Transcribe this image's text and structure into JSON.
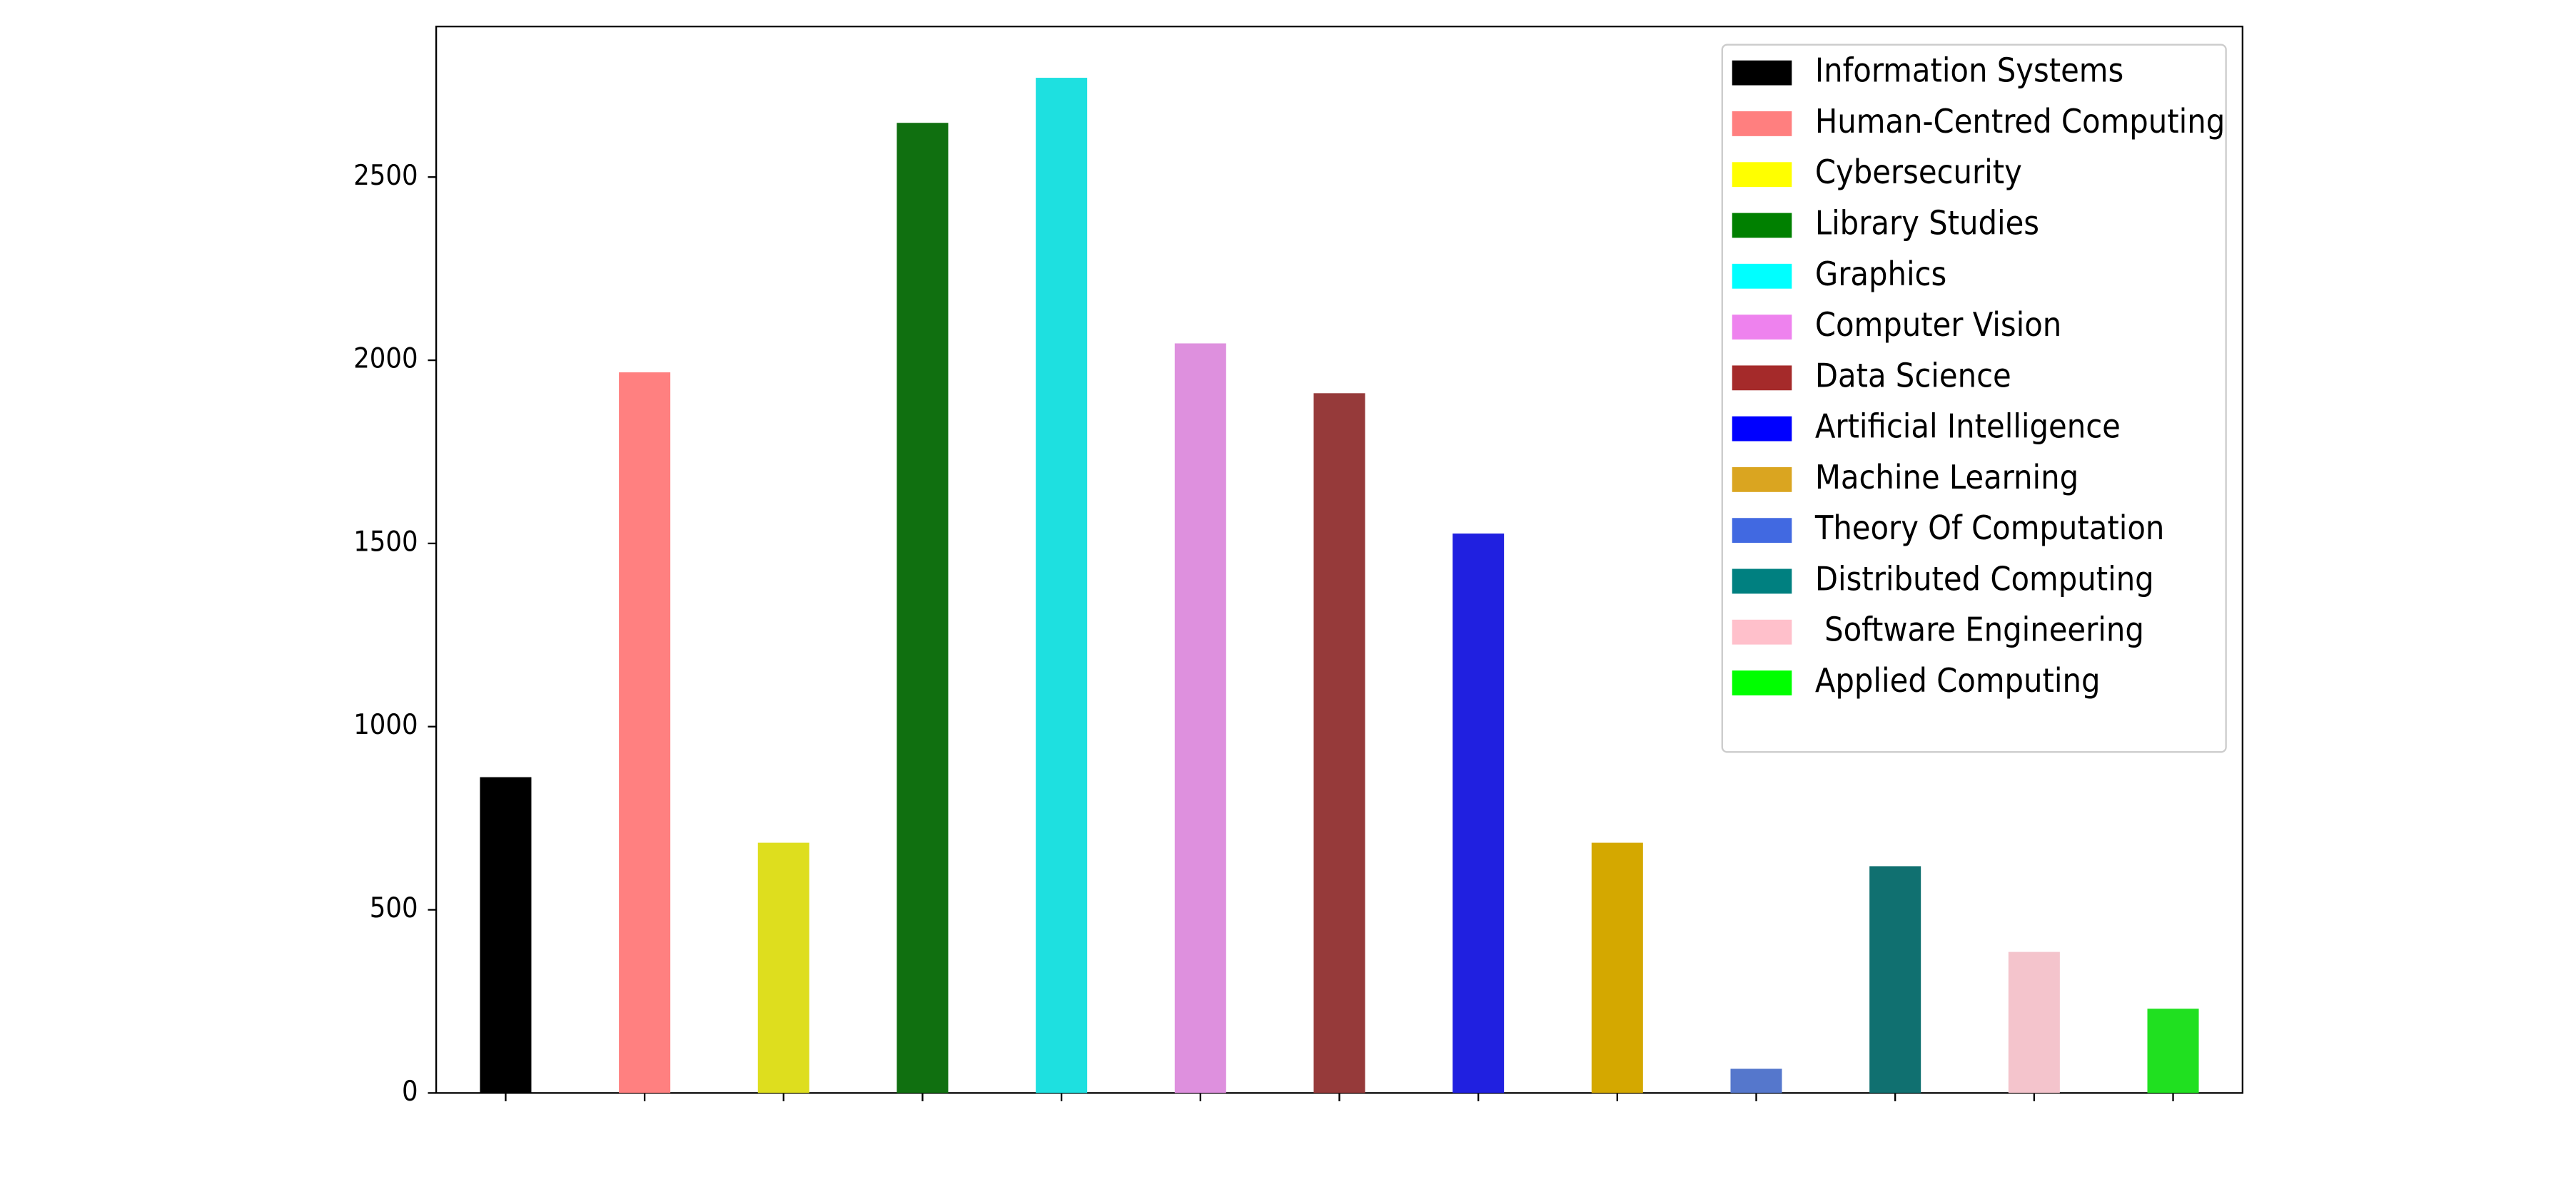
{
  "chart_data": {
    "type": "bar",
    "categories": [
      "Information Systems",
      "Human-Centred Computing",
      "Cybersecurity",
      "Library Studies",
      "Graphics",
      "Computer Vision",
      "Data Science",
      "Artificial Intelligence",
      "Machine Learning",
      "Theory Of Computation",
      "Distributed Computing",
      " Software Engineering",
      "Applied Computing"
    ],
    "values": [
      862,
      1967,
      683,
      2648,
      2771,
      2046,
      1910,
      1527,
      683,
      66,
      619,
      385,
      230
    ],
    "colors": [
      "#000000",
      "#ff8080",
      "#dede1e",
      "#107010",
      "#1ee0e0",
      "#de90de",
      "#963a3a",
      "#2020e0",
      "#d4a800",
      "#5577cc",
      "#107070",
      "#f4c4cc",
      "#20e020"
    ],
    "legend_colors": [
      "#000000",
      "#ff7f7f",
      "#ffff00",
      "#008000",
      "#00ffff",
      "#ee82ee",
      "#a52a2a",
      "#0000ff",
      "#daa520",
      "#4169e1",
      "#008080",
      "#ffc0cb",
      "#00ff00"
    ],
    "ylim": [
      0,
      2911
    ],
    "yticks": [
      0,
      500,
      1000,
      1500,
      2000,
      2500
    ],
    "legend": "upper right"
  }
}
